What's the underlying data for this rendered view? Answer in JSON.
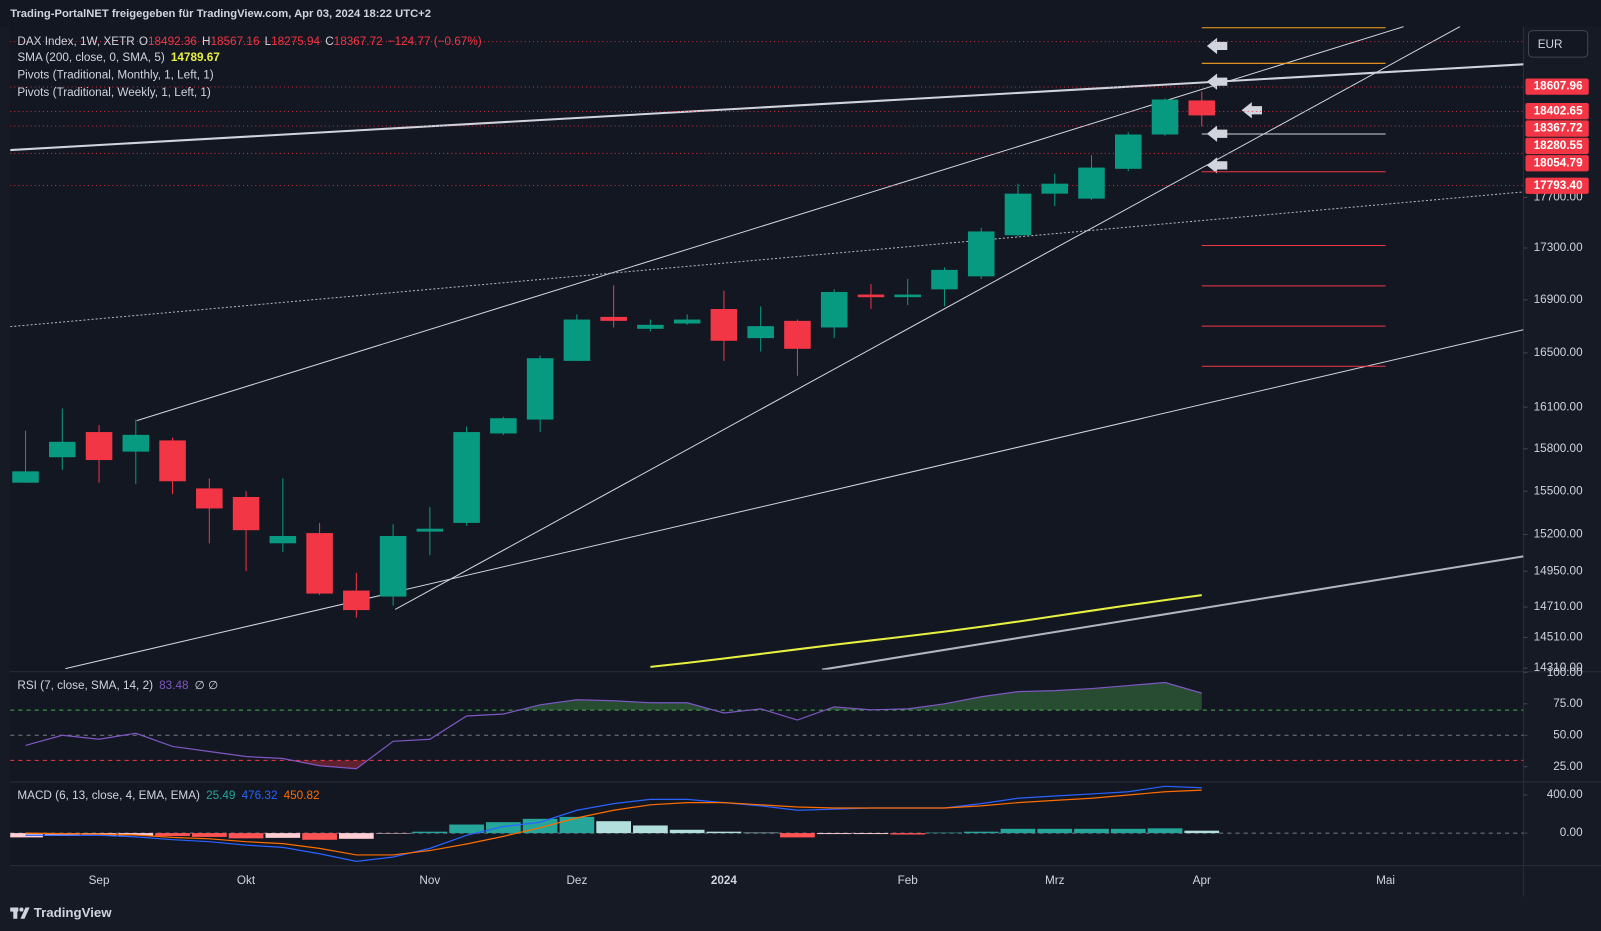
{
  "header": {
    "text": "Trading-PortalNET freigegeben für TradingView.com, Apr 03, 2024 18:22 UTC+2"
  },
  "currency": "EUR",
  "footer": {
    "brand": "TradingView"
  },
  "chart_data": [
    {
      "type": "candlestick",
      "legend": {
        "symbol": "DAX Index, 1W, XETR",
        "o": "O",
        "h": "H",
        "l": "L",
        "c": "C",
        "change": "−124.77 (−0.67%)"
      },
      "categories": [
        null,
        null,
        "Sep",
        null,
        null,
        null,
        "Okt",
        null,
        null,
        null,
        null,
        "Nov",
        null,
        null,
        null,
        "Dez",
        null,
        null,
        null,
        "2024",
        null,
        null,
        null,
        null,
        "Feb",
        null,
        null,
        null,
        "Mrz",
        null,
        null,
        null,
        "Apr",
        null,
        null,
        null,
        null,
        "Mai",
        null,
        null,
        null
      ],
      "open": [
        15560,
        15740,
        15920,
        15780,
        15860,
        15520,
        15460,
        15140,
        15210,
        14820,
        14780,
        15220,
        15280,
        15910,
        16010,
        16440,
        16770,
        16680,
        16720,
        16830,
        16610,
        16740,
        16690,
        16940,
        16920,
        16980,
        17080,
        17400,
        17730,
        17690,
        17930,
        18210,
        18492.36,
        null,
        null,
        null,
        null,
        null,
        null,
        null,
        null
      ],
      "high": [
        15930,
        16090,
        15970,
        16010,
        15880,
        15590,
        15500,
        15590,
        15280,
        14940,
        15270,
        15390,
        15960,
        16030,
        16480,
        16790,
        17010,
        16750,
        16790,
        16970,
        16850,
        16750,
        16980,
        17020,
        17060,
        17150,
        17460,
        17810,
        17890,
        18040,
        18230,
        18510,
        18567.16,
        null,
        null,
        null,
        null,
        null,
        null,
        null,
        null
      ],
      "low": [
        15560,
        15650,
        15560,
        15550,
        15480,
        15140,
        14950,
        15080,
        14790,
        14640,
        14720,
        15060,
        15260,
        15900,
        15920,
        16440,
        16690,
        16660,
        16710,
        16440,
        16510,
        16330,
        16610,
        16830,
        16860,
        16850,
        17060,
        17390,
        17630,
        17680,
        17910,
        18200,
        18275.94,
        null,
        null,
        null,
        null,
        null,
        null,
        null,
        null
      ],
      "close": [
        15640,
        15850,
        15720,
        15900,
        15570,
        15380,
        15230,
        15190,
        14800,
        14690,
        15190,
        15240,
        15920,
        16020,
        16460,
        16750,
        16740,
        16710,
        16750,
        16590,
        16700,
        16530,
        16960,
        16920,
        16940,
        17130,
        17430,
        17730,
        17810,
        17940,
        18210,
        18500,
        18367.72,
        null,
        null,
        null,
        null,
        null,
        null,
        null,
        null
      ],
      "up_color": "#089981",
      "down_color": "#f23645",
      "log_scale": true,
      "ylim": [
        14300,
        19120
      ],
      "yticks": [
        {
          "value": 17700,
          "label": "17700.00"
        },
        {
          "value": 17300,
          "label": "17300.00"
        },
        {
          "value": 16900,
          "label": "16900.00"
        },
        {
          "value": 16500,
          "label": "16500.00"
        },
        {
          "value": 16100,
          "label": "16100.00"
        },
        {
          "value": 15800,
          "label": "15800.00"
        },
        {
          "value": 15500,
          "label": "15500.00"
        },
        {
          "value": 15200,
          "label": "15200.00"
        },
        {
          "value": 14950,
          "label": "14950.00"
        },
        {
          "value": 14710,
          "label": "14710.00"
        },
        {
          "value": 14510,
          "label": "14510.00"
        },
        {
          "value": 14310,
          "label": "14310.00"
        }
      ],
      "sma": {
        "name": "SMA (200, close, 0, SMA, 5)",
        "color": "#e8f041",
        "values": [
          null,
          null,
          null,
          null,
          null,
          null,
          null,
          null,
          null,
          null,
          null,
          null,
          null,
          null,
          null,
          null,
          null,
          14318,
          14344,
          14372,
          14402,
          14432,
          14462,
          14490,
          14518,
          14548,
          14580,
          14614,
          14650,
          14686,
          14722,
          14756,
          14789.67,
          null,
          null,
          null,
          null,
          null,
          null,
          null,
          null
        ]
      },
      "monthly_pivots": {
        "name": "Pivots (Traditional, Monthly, 1, Left, 1)",
        "color": "#f23645",
        "levels": [
          18990,
          18605,
          18400,
          18280,
          18055,
          17795
        ]
      },
      "weekly_pivots": {
        "name": "Pivots (Traditional, Weekly, 1, Left, 1)",
        "levels": [
          19110,
          18805,
          18214,
          17906,
          17320,
          17007,
          16700,
          16400
        ],
        "colors": [
          "#f7a21b",
          "#f7a21b",
          "#d1d4dc",
          "#f23645",
          "#f23645",
          "#f23645",
          "#f23645",
          "#f23645"
        ]
      },
      "price_tags": [
        {
          "value": 18607.96,
          "label": "18607.96"
        },
        {
          "value": 18402.65,
          "label": "18402.65"
        },
        {
          "value": 18280.55,
          "label": "18280.55"
        },
        {
          "value": 18054.79,
          "label": "18054.79"
        },
        {
          "value": 17793.4,
          "label": "17793.40"
        }
      ],
      "tag_color": "#f23645",
      "grid": false
    },
    {
      "type": "line",
      "name": "RSI (7, close, SMA, 14, 2)",
      "extra": "∅ ∅",
      "color": "#7e57c2",
      "values": [
        41.9,
        50.0,
        46.8,
        51.6,
        41.1,
        37.1,
        33.1,
        31.5,
        25.8,
        23.4,
        45.2,
        46.8,
        65.3,
        66.9,
        74.2,
        78.2,
        77.4,
        75.8,
        75.8,
        67.7,
        71.0,
        62.1,
        72.6,
        70.2,
        71.0,
        75.0,
        80.6,
        84.7,
        85.5,
        87.1,
        89.5,
        91.9,
        83.48,
        null,
        null,
        null,
        null,
        null,
        null,
        null,
        null
      ],
      "ylim": [
        13.7,
        100.5
      ],
      "yticks": [
        {
          "value": 100,
          "label": "100.00"
        },
        {
          "value": 75,
          "label": "75.00"
        },
        {
          "value": 50,
          "label": "50.00"
        },
        {
          "value": 25,
          "label": "25.00"
        }
      ],
      "bands": [
        70,
        50,
        30
      ],
      "band_colors": [
        "#4caf50",
        "#787b86",
        "#f23645"
      ]
    },
    {
      "type": "macd",
      "name": "MACD (6, 13, close, 4, EMA, EMA)",
      "histogram": {
        "color": "#26a69a",
        "values": [
          -45,
          -30,
          -25,
          -25,
          -30,
          -40,
          -55,
          -50,
          -70,
          -60,
          -5,
          15,
          90,
          115,
          150,
          170,
          125,
          80,
          35,
          15,
          5,
          -45,
          -10,
          -10,
          -15,
          5,
          15,
          45,
          45,
          45,
          45,
          50,
          25.49,
          null,
          null,
          null,
          null,
          null,
          null,
          null,
          null
        ]
      },
      "macd": {
        "color": "#2962ff",
        "values": [
          -23,
          -23,
          -23,
          -40,
          -69,
          -90,
          -126,
          -150,
          -217,
          -297,
          -251,
          -160,
          -23,
          69,
          114,
          240,
          309,
          354,
          354,
          320,
          286,
          240,
          251,
          263,
          263,
          263,
          309,
          366,
          389,
          411,
          434,
          491,
          476.32,
          null,
          null,
          null,
          null,
          null,
          null,
          null,
          null
        ]
      },
      "signal": {
        "color": "#ff6d00",
        "values": [
          0,
          -5,
          -10,
          -20,
          -45,
          -60,
          -90,
          -110,
          -160,
          -229,
          -229,
          -183,
          -114,
          -34,
          57,
          160,
          240,
          297,
          320,
          320,
          297,
          274,
          263,
          263,
          263,
          263,
          286,
          320,
          343,
          366,
          400,
          434,
          450.82,
          null,
          null,
          null,
          null,
          null,
          null,
          null,
          null
        ]
      },
      "hist_colors": [
        "#26a69a",
        "#b2dfdb",
        "#ffcdd2",
        "#ff5252"
      ],
      "ylim": [
        -331,
        526
      ],
      "yticks": [
        {
          "value": 400,
          "label": "400.00"
        },
        {
          "value": 0,
          "label": "0.00"
        }
      ]
    }
  ]
}
